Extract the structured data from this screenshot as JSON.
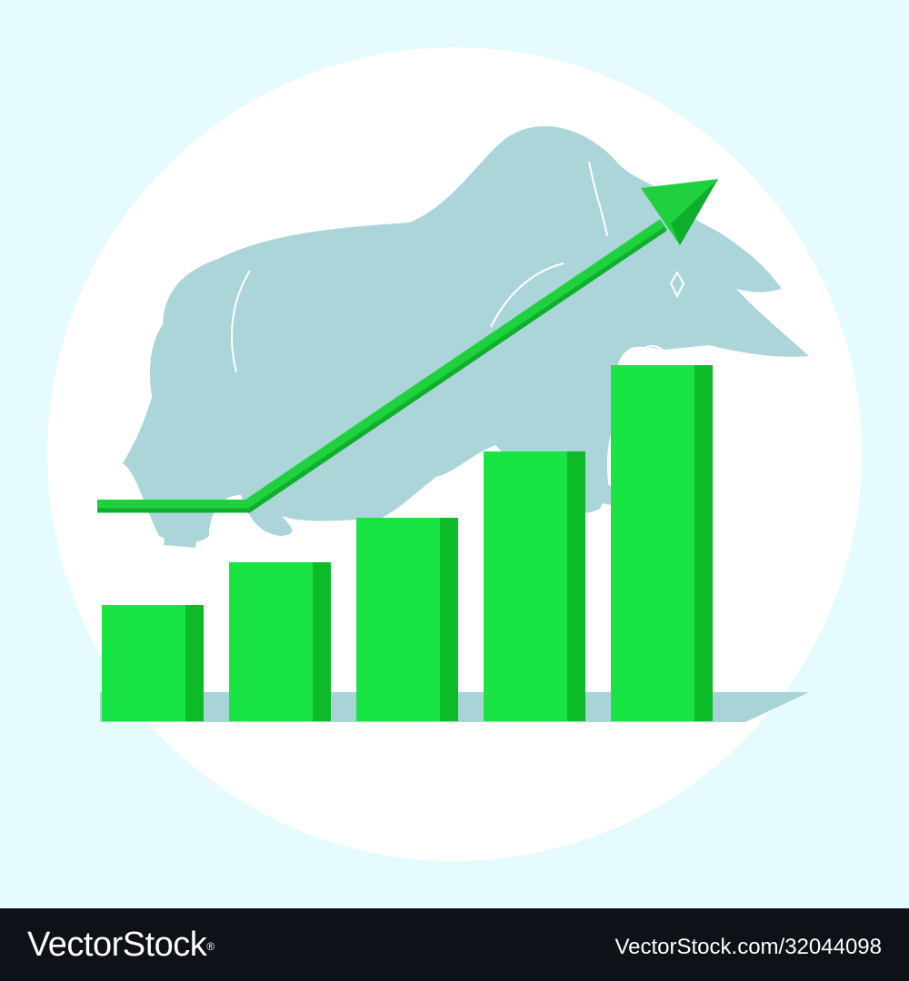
{
  "illustration": {
    "subject": "bull-market-growth-chart",
    "colors": {
      "background": "#e6fbfd",
      "circle": "#ffffff",
      "bull": "#acd5da",
      "bar_front": "#18e544",
      "bar_side": "#0dbb2a",
      "arrow": "#1fd13e",
      "shadow": "#a8d3d7"
    },
    "bars": [
      {
        "name": "bar-1",
        "relative_height": 0.33
      },
      {
        "name": "bar-2",
        "relative_height": 0.45
      },
      {
        "name": "bar-3",
        "relative_height": 0.57
      },
      {
        "name": "bar-4",
        "relative_height": 0.75
      },
      {
        "name": "bar-5",
        "relative_height": 1.0
      }
    ]
  },
  "footer": {
    "brand": "VectorStock",
    "registered_mark": "®",
    "image_id": "VectorStock.com/32044098"
  }
}
